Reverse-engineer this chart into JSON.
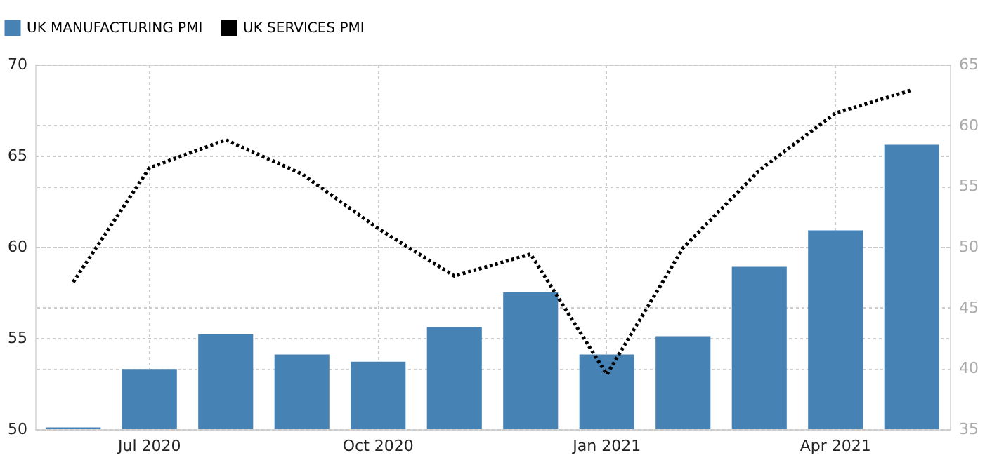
{
  "chart_data": {
    "type": "bar",
    "categories": [
      null,
      "Jul 2020",
      null,
      null,
      "Oct 2020",
      null,
      null,
      "Jan 2021",
      null,
      null,
      "Apr 2021",
      null
    ],
    "series": [
      {
        "name": "UK MANUFACTURING PMI",
        "color": "#4682b4",
        "values": [
          50.1,
          53.3,
          55.2,
          54.1,
          53.7,
          55.6,
          57.5,
          54.1,
          55.1,
          58.9,
          60.9,
          65.6
        ]
      },
      {
        "name": "UK SERVICES PMI",
        "type": "line",
        "axis": "y2",
        "color": "#000000",
        "line_style": "dotted",
        "values": [
          47.1,
          56.5,
          58.8,
          56.0,
          51.5,
          47.6,
          49.4,
          39.5,
          49.9,
          56.3,
          61.0,
          62.9
        ]
      }
    ],
    "ylim": [
      50,
      70
    ],
    "yticks": [
      50,
      55,
      60,
      65,
      70
    ],
    "y2lim": [
      35,
      65
    ],
    "y2ticks": [
      35,
      40,
      45,
      50,
      55,
      60,
      65
    ],
    "grid": true,
    "legend": "top left",
    "marker": "none"
  }
}
